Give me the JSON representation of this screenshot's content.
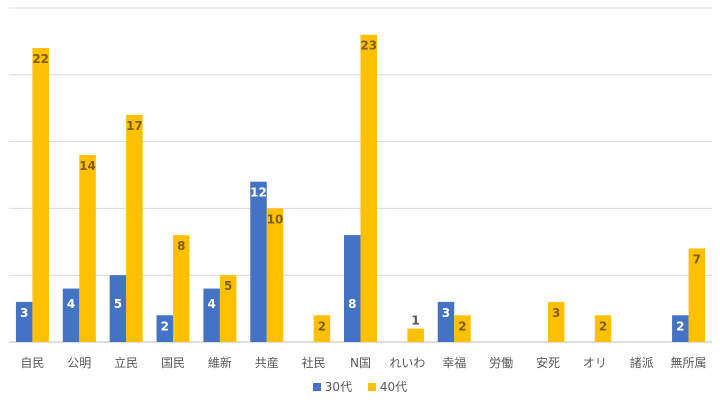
{
  "chart_data": {
    "type": "bar",
    "title": "",
    "xlabel": "",
    "ylabel": "",
    "ylim": [
      0,
      25
    ],
    "grid": true,
    "legend_position": "bottom",
    "categories": [
      "自民",
      "公明",
      "立民",
      "国民",
      "維新",
      "共産",
      "社民",
      "N国",
      "れいわ",
      "幸福",
      "労働",
      "安死",
      "オリ",
      "諸派",
      "無所属"
    ],
    "series": [
      {
        "name": "30代",
        "color": "#4472C4",
        "label_color": "#FFFFFF",
        "values": [
          3,
          4,
          5,
          2,
          4,
          12,
          null,
          8,
          null,
          3,
          null,
          null,
          null,
          null,
          2
        ]
      },
      {
        "name": "40代",
        "color": "#FFC000",
        "label_color": "#7F6000",
        "values": [
          22,
          14,
          17,
          8,
          5,
          10,
          2,
          23,
          1,
          2,
          null,
          3,
          2,
          null,
          7
        ]
      }
    ]
  }
}
